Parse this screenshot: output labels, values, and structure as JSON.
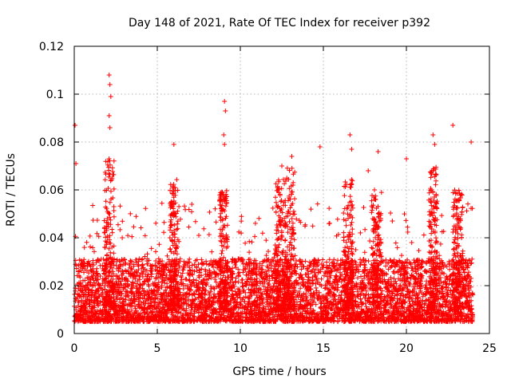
{
  "chart_data": {
    "type": "scatter",
    "title": "Day 148 of 2021, Rate Of TEC Index for receiver p392",
    "xlabel": "GPS time / hours",
    "ylabel": "ROTI / TECUs",
    "xlim": [
      0,
      25
    ],
    "ylim": [
      0,
      0.12
    ],
    "xticks": [
      0,
      5,
      10,
      15,
      20,
      25
    ],
    "xtick_labels": [
      "0",
      "5",
      "10",
      "15",
      "20",
      "25"
    ],
    "yticks": [
      0,
      0.02,
      0.04,
      0.06,
      0.08,
      0.1,
      0.12
    ],
    "ytick_labels": [
      "0",
      "0.02",
      "0.04",
      "0.06",
      "0.08",
      "0.1",
      "0.12"
    ],
    "grid": true,
    "marker": "plus",
    "color": "#ff0000",
    "x_extent_hours": [
      0,
      24
    ],
    "typical_band": [
      0.005,
      0.03
    ],
    "notable_points": [
      {
        "x": 0.05,
        "y": 0.087
      },
      {
        "x": 0.1,
        "y": 0.071
      },
      {
        "x": 2.1,
        "y": 0.108
      },
      {
        "x": 2.15,
        "y": 0.104
      },
      {
        "x": 2.2,
        "y": 0.099
      },
      {
        "x": 2.1,
        "y": 0.091
      },
      {
        "x": 2.15,
        "y": 0.086
      },
      {
        "x": 9.05,
        "y": 0.097
      },
      {
        "x": 9.1,
        "y": 0.093
      },
      {
        "x": 9.0,
        "y": 0.083
      },
      {
        "x": 9.05,
        "y": 0.079
      },
      {
        "x": 6.0,
        "y": 0.079
      },
      {
        "x": 14.8,
        "y": 0.078
      },
      {
        "x": 16.6,
        "y": 0.083
      },
      {
        "x": 16.7,
        "y": 0.077
      },
      {
        "x": 21.6,
        "y": 0.083
      },
      {
        "x": 21.7,
        "y": 0.079
      },
      {
        "x": 22.8,
        "y": 0.087
      },
      {
        "x": 23.9,
        "y": 0.08
      },
      {
        "x": 20.0,
        "y": 0.073
      },
      {
        "x": 18.3,
        "y": 0.076
      },
      {
        "x": 17.7,
        "y": 0.068
      },
      {
        "x": 12.5,
        "y": 0.07
      },
      {
        "x": 13.1,
        "y": 0.074
      }
    ],
    "peak_regions": [
      {
        "x_center": 2.1,
        "x_width": 0.6,
        "y_max": 0.075
      },
      {
        "x_center": 6.0,
        "x_width": 0.5,
        "y_max": 0.065
      },
      {
        "x_center": 9.0,
        "x_width": 0.5,
        "y_max": 0.06
      },
      {
        "x_center": 12.4,
        "x_width": 0.6,
        "y_max": 0.065
      },
      {
        "x_center": 13.0,
        "x_width": 0.6,
        "y_max": 0.07
      },
      {
        "x_center": 16.5,
        "x_width": 0.6,
        "y_max": 0.065
      },
      {
        "x_center": 18.2,
        "x_width": 0.6,
        "y_max": 0.06
      },
      {
        "x_center": 21.6,
        "x_width": 0.5,
        "y_max": 0.07
      },
      {
        "x_center": 23.1,
        "x_width": 0.6,
        "y_max": 0.06
      }
    ]
  }
}
